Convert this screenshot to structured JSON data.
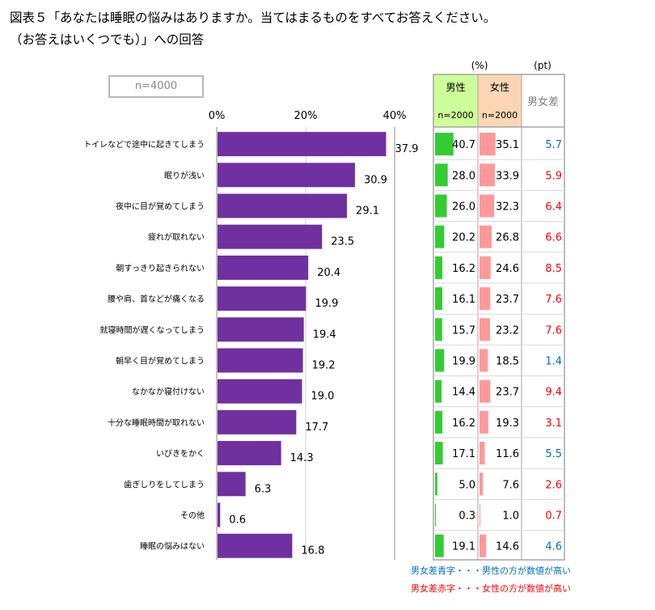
{
  "title": {
    "line1": "図表５「あなたは睡眠の悩みはありますか。当てはまるものをすべてお答えください。",
    "line2": "（お答えはいくつでも）」への回答"
  },
  "sample_label": "n=4000",
  "table_header": {
    "pct_unit": "(%)",
    "pt_unit": "(pt)",
    "male": "男性",
    "male_n": "n=2000",
    "female": "女性",
    "female_n": "n=2000",
    "diff": "男女差"
  },
  "legend": {
    "blue": "男女差青字・・・男性の方が数値が高い",
    "red": "男女差赤字・・・女性の方が数値が高い"
  },
  "colors": {
    "bar": "#7030a0",
    "male_header": "#ccff99",
    "female_header": "#fcd5b4",
    "male_bar": "#33cc33",
    "female_bar": "#ff9999",
    "diff_blue": "#0070c0",
    "diff_red": "#ff0000"
  },
  "chart_data": {
    "type": "bar",
    "orientation": "horizontal",
    "xlim": [
      0,
      40
    ],
    "ticks": [
      "0%",
      "20%",
      "40%"
    ],
    "categories": [
      "トイレなどで途中に起きてしまう",
      "眠りが浅い",
      "夜中に目が覚めてしまう",
      "疲れが取れない",
      "朝すっきり起きられない",
      "腰や肩、首などが痛くなる",
      "就寝時間が遅くなってしまう",
      "朝早く目が覚めてしまう",
      "なかなか寝付けない",
      "十分な睡眠時間が取れない",
      "いびきをかく",
      "歯ぎしりをしてしまう",
      "その他",
      "睡眠の悩みはない"
    ],
    "values": [
      37.9,
      30.9,
      29.1,
      23.5,
      20.4,
      19.9,
      19.4,
      19.2,
      19.0,
      17.7,
      14.3,
      6.3,
      0.6,
      16.8
    ],
    "table": {
      "male": [
        40.7,
        28.0,
        26.0,
        20.2,
        16.2,
        16.1,
        15.7,
        19.9,
        14.4,
        16.2,
        17.1,
        5.0,
        0.3,
        19.1
      ],
      "female": [
        35.1,
        33.9,
        32.3,
        26.8,
        24.6,
        23.7,
        23.2,
        18.5,
        23.7,
        19.3,
        11.6,
        7.6,
        1.0,
        14.6
      ],
      "diff": [
        5.7,
        5.9,
        6.4,
        6.6,
        8.5,
        7.6,
        7.6,
        1.4,
        9.4,
        3.1,
        5.5,
        2.6,
        0.7,
        4.6
      ],
      "diff_color": [
        "blue",
        "red",
        "red",
        "red",
        "red",
        "red",
        "red",
        "blue",
        "red",
        "red",
        "blue",
        "red",
        "red",
        "blue"
      ]
    }
  }
}
